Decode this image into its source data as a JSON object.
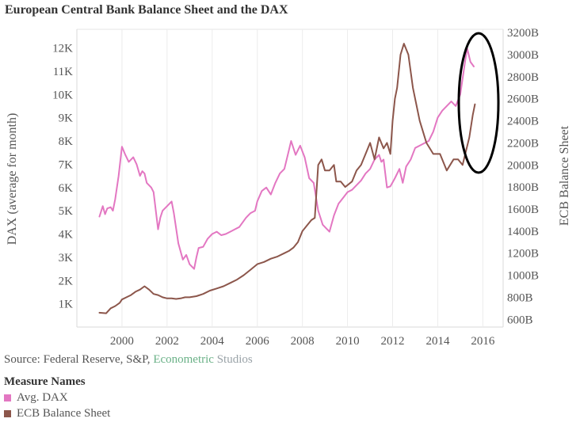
{
  "title": "European Central Bank Balance Sheet and the DAX",
  "source": {
    "prefix": "Source: Federal Reserve, S&P, ",
    "brand1": "Econometric",
    "brand2": " Studios"
  },
  "legend": {
    "title": "Measure Names",
    "items": [
      {
        "label": "Avg. DAX",
        "color": "#e377c2"
      },
      {
        "label": "ECB Balance Sheet",
        "color": "#8c564b"
      }
    ]
  },
  "chart_data": {
    "type": "line",
    "title": "European Central Bank Balance Sheet and the DAX",
    "xlabel": "",
    "ylabel": "DAX (average for month)",
    "y2label": "ECB Balance Sheet",
    "xlim": [
      1998.0,
      2016.9
    ],
    "ylim": [
      0,
      12800
    ],
    "y2lim": [
      530,
      3230
    ],
    "x_ticks": [
      "2000",
      "2002",
      "2004",
      "2006",
      "2008",
      "2010",
      "2012",
      "2014",
      "2016"
    ],
    "y_ticks": [
      "1K",
      "2K",
      "3K",
      "4K",
      "5K",
      "6K",
      "7K",
      "8K",
      "9K",
      "10K",
      "11K",
      "12K"
    ],
    "y2_ticks": [
      "600B",
      "800B",
      "1000B",
      "1200B",
      "1400B",
      "1600B",
      "1800B",
      "2000B",
      "2200B",
      "2400B",
      "2600B",
      "2800B",
      "3000B",
      "3200B"
    ],
    "grid": "vertical",
    "annotation": "black ellipse around 2015 peak",
    "series": [
      {
        "name": "Avg. DAX",
        "axis": "left",
        "color": "#e377c2",
        "x": [
          1999.0,
          1999.15,
          1999.25,
          1999.35,
          1999.5,
          1999.6,
          1999.7,
          1999.85,
          2000.0,
          2000.15,
          2000.3,
          2000.5,
          2000.65,
          2000.8,
          2000.9,
          2001.0,
          2001.1,
          2001.3,
          2001.4,
          2001.6,
          2001.7,
          2001.8,
          2002.0,
          2002.2,
          2002.3,
          2002.5,
          2002.7,
          2002.85,
          2003.0,
          2003.2,
          2003.3,
          2003.4,
          2003.6,
          2003.8,
          2004.0,
          2004.2,
          2004.4,
          2004.6,
          2004.8,
          2005.0,
          2005.2,
          2005.5,
          2005.7,
          2005.9,
          2006.0,
          2006.2,
          2006.4,
          2006.6,
          2006.8,
          2007.0,
          2007.2,
          2007.4,
          2007.5,
          2007.7,
          2007.9,
          2008.1,
          2008.3,
          2008.5,
          2008.7,
          2008.9,
          2009.2,
          2009.4,
          2009.6,
          2009.8,
          2010.0,
          2010.2,
          2010.4,
          2010.6,
          2010.8,
          2011.0,
          2011.2,
          2011.4,
          2011.5,
          2011.6,
          2011.75,
          2011.9,
          2012.1,
          2012.3,
          2012.45,
          2012.6,
          2012.8,
          2013.0,
          2013.2,
          2013.4,
          2013.6,
          2013.8,
          2014.0,
          2014.2,
          2014.4,
          2014.6,
          2014.8,
          2015.0,
          2015.15,
          2015.3,
          2015.45,
          2015.6
        ],
        "y": [
          4750,
          5200,
          4850,
          5100,
          5150,
          5000,
          5500,
          6500,
          7750,
          7400,
          7100,
          7300,
          7000,
          6500,
          6700,
          6600,
          6200,
          6000,
          5800,
          4200,
          4700,
          5000,
          5200,
          5400,
          4900,
          3600,
          2900,
          3100,
          2700,
          2500,
          3000,
          3400,
          3450,
          3800,
          4000,
          4100,
          3950,
          4000,
          4100,
          4200,
          4300,
          4700,
          4900,
          5000,
          5400,
          5850,
          6000,
          5700,
          6200,
          6600,
          6800,
          7600,
          8000,
          7400,
          7800,
          7300,
          6400,
          6200,
          5000,
          4400,
          4100,
          4800,
          5300,
          5550,
          5800,
          5900,
          6100,
          6300,
          6600,
          6800,
          7200,
          7400,
          7100,
          7200,
          6000,
          6050,
          6400,
          6800,
          6200,
          6900,
          7200,
          7700,
          7800,
          7900,
          8000,
          8400,
          9000,
          9300,
          9500,
          9700,
          9500,
          10000,
          11000,
          12000,
          11400,
          11200
        ]
      },
      {
        "name": "ECB Balance Sheet",
        "axis": "right",
        "color": "#8c564b",
        "x": [
          1999.0,
          1999.3,
          1999.5,
          1999.7,
          1999.9,
          2000.0,
          2000.2,
          2000.4,
          2000.6,
          2000.8,
          2001.0,
          2001.2,
          2001.4,
          2001.6,
          2001.8,
          2002.0,
          2002.2,
          2002.4,
          2002.6,
          2002.8,
          2003.0,
          2003.3,
          2003.6,
          2003.9,
          2004.2,
          2004.5,
          2004.8,
          2005.1,
          2005.4,
          2005.7,
          2006.0,
          2006.3,
          2006.6,
          2006.9,
          2007.2,
          2007.4,
          2007.6,
          2007.8,
          2008.0,
          2008.2,
          2008.4,
          2008.55,
          2008.7,
          2008.85,
          2009.0,
          2009.2,
          2009.4,
          2009.5,
          2009.7,
          2009.9,
          2010.2,
          2010.4,
          2010.6,
          2010.8,
          2011.0,
          2011.2,
          2011.4,
          2011.6,
          2011.75,
          2011.9,
          2012.0,
          2012.1,
          2012.2,
          2012.35,
          2012.5,
          2012.7,
          2012.9,
          2013.2,
          2013.5,
          2013.8,
          2014.1,
          2014.4,
          2014.7,
          2014.9,
          2015.1,
          2015.4,
          2015.55,
          2015.65
        ],
        "y": [
          660,
          655,
          700,
          720,
          750,
          780,
          800,
          820,
          850,
          870,
          900,
          870,
          830,
          820,
          800,
          790,
          790,
          785,
          790,
          800,
          800,
          810,
          830,
          860,
          880,
          900,
          930,
          960,
          1000,
          1050,
          1100,
          1120,
          1150,
          1170,
          1200,
          1220,
          1250,
          1300,
          1400,
          1450,
          1500,
          1520,
          2000,
          2050,
          1950,
          1950,
          2000,
          1850,
          1850,
          1800,
          1850,
          1950,
          2000,
          2100,
          2200,
          2050,
          2250,
          2150,
          2200,
          2100,
          2400,
          2600,
          2700,
          3000,
          3100,
          3000,
          2700,
          2400,
          2200,
          2100,
          2100,
          1950,
          2050,
          2050,
          2000,
          2250,
          2450,
          2550
        ]
      }
    ]
  }
}
